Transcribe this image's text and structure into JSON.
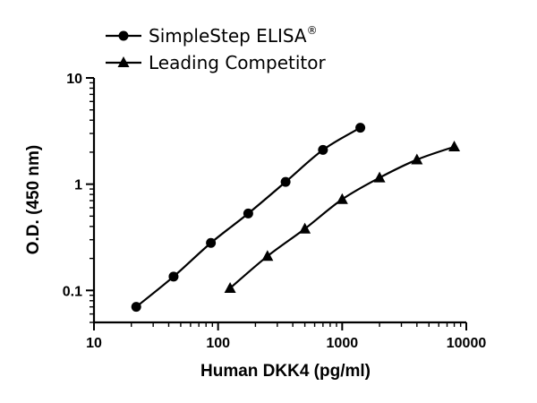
{
  "chart_data": {
    "type": "line",
    "title": "",
    "xlabel": "Human DKK4 (pg/ml)",
    "ylabel": "O.D. (450 nm)",
    "xscale": "log",
    "yscale": "log",
    "xlim": [
      10,
      10000
    ],
    "ylim": [
      0.05,
      10
    ],
    "x_ticks": [
      {
        "value": 10,
        "label": "10"
      },
      {
        "value": 100,
        "label": "100"
      },
      {
        "value": 1000,
        "label": "1000"
      },
      {
        "value": 10000,
        "label": "10000"
      }
    ],
    "y_ticks": [
      {
        "value": 0.1,
        "label": "0.1"
      },
      {
        "value": 1,
        "label": "1"
      },
      {
        "value": 10,
        "label": "10"
      }
    ],
    "legend_position": "top-left",
    "grid": false,
    "series": [
      {
        "name": "SimpleStep ELISA",
        "name_superscript": "®",
        "marker": "circle",
        "x": [
          21.9,
          43.8,
          87.5,
          175,
          350,
          700,
          1400
        ],
        "y": [
          0.07,
          0.135,
          0.28,
          0.53,
          1.05,
          2.1,
          3.4
        ]
      },
      {
        "name": "Leading Competitor",
        "name_superscript": "",
        "marker": "triangle",
        "x": [
          125,
          250,
          500,
          1000,
          2000,
          4000,
          8000
        ],
        "y": [
          0.105,
          0.21,
          0.38,
          0.72,
          1.15,
          1.7,
          2.25
        ]
      }
    ]
  }
}
